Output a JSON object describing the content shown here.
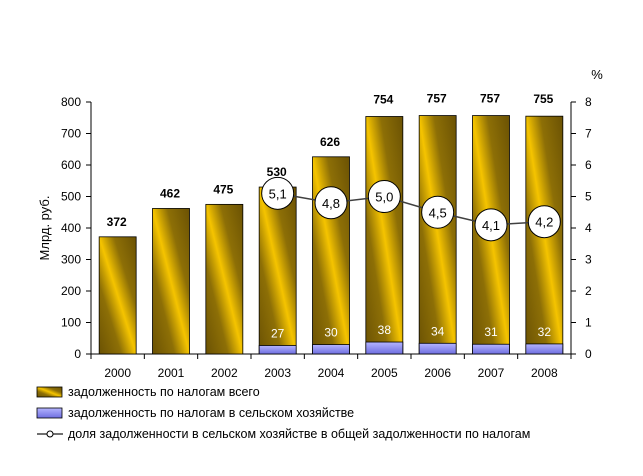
{
  "chart_data": {
    "type": "bar",
    "categories": [
      "2000",
      "2001",
      "2002",
      "2003",
      "2004",
      "2005",
      "2006",
      "2007",
      "2008"
    ],
    "ylabel": "Млрд. руб.",
    "y2label": "%",
    "ylim": [
      0,
      800
    ],
    "y2lim": [
      0,
      8
    ],
    "yticks": [
      0,
      100,
      200,
      300,
      400,
      500,
      600,
      700,
      800
    ],
    "y2ticks": [
      0,
      1,
      2,
      3,
      4,
      5,
      6,
      7,
      8
    ],
    "legend_position": "bottom",
    "series": [
      {
        "name": "задолженность по налогам всего",
        "type": "bar",
        "color": "#7a6005",
        "highlight": "#f5c400",
        "values": [
          372,
          462,
          475,
          530,
          626,
          754,
          757,
          757,
          755
        ],
        "labels": [
          "372",
          "462",
          "475",
          "530",
          "626",
          "754",
          "757",
          "757",
          "755"
        ]
      },
      {
        "name": "задолженность по налогам в сельском хозяйстве",
        "type": "bar",
        "color": "#8a8af0",
        "values": [
          null,
          null,
          null,
          27,
          30,
          38,
          34,
          31,
          32
        ],
        "labels": [
          "",
          "",
          "",
          "27",
          "30",
          "38",
          "34",
          "31",
          "32"
        ]
      },
      {
        "name": "доля задолженности в сельском хозяйстве в общей задолженности по налогам",
        "type": "line",
        "axis": "right",
        "color": "#404040",
        "values": [
          null,
          null,
          null,
          5.1,
          4.8,
          5.0,
          4.5,
          4.1,
          4.2
        ],
        "labels": [
          "",
          "",
          "",
          "5,1",
          "4,8",
          "5,0",
          "4,5",
          "4,1",
          "4,2"
        ]
      }
    ]
  }
}
